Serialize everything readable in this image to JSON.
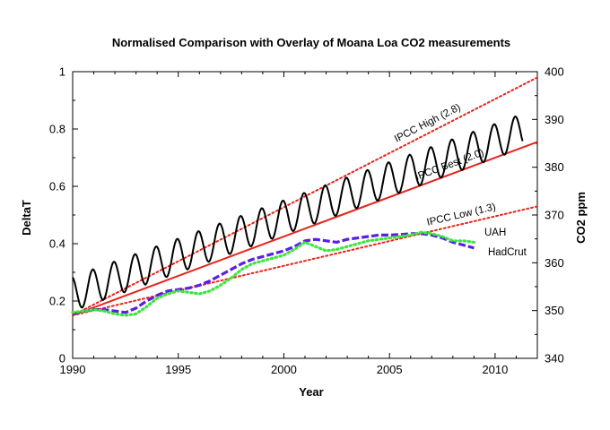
{
  "chart_data": {
    "type": "line",
    "title": "Normalised Comparison with Overlay of Moana Loa CO2 measurements",
    "xlabel": "Year",
    "ylabel": "DeltaT",
    "y2label": "CO2 ppm",
    "xlim": [
      1990,
      2012
    ],
    "ylim": [
      0,
      1
    ],
    "y2lim": [
      340,
      400
    ],
    "xticks": [
      1990,
      1995,
      2000,
      2005,
      2010
    ],
    "yticks": [
      0,
      0.2,
      0.4,
      0.6,
      0.8,
      1
    ],
    "y2ticks": [
      340,
      350,
      360,
      370,
      380,
      390,
      400
    ],
    "grid": false,
    "projections": [
      {
        "name": "IPCC High (2.8)",
        "color": "#e8241b",
        "style": "dotted",
        "start": [
          1990,
          0.15
        ],
        "end": [
          2012,
          0.98
        ]
      },
      {
        "name": "IPCC Best (2.0)",
        "color": "#e8241b",
        "style": "solid",
        "start": [
          1990,
          0.15
        ],
        "end": [
          2012,
          0.755
        ]
      },
      {
        "name": "IPCC Low (1.3)",
        "color": "#e8241b",
        "style": "dotted",
        "start": [
          1990,
          0.15
        ],
        "end": [
          2012,
          0.53
        ]
      }
    ],
    "series": [
      {
        "name": "UAH",
        "color": "#5a1ee6",
        "style": "dashed",
        "x": [
          1990,
          1990.5,
          1991,
          1991.5,
          1992,
          1992.5,
          1993,
          1993.5,
          1994,
          1994.5,
          1995,
          1995.5,
          1996,
          1996.5,
          1997,
          1997.5,
          1998,
          1998.5,
          1999,
          1999.5,
          2000,
          2000.5,
          2001,
          2001.5,
          2002,
          2002.5,
          2003,
          2003.5,
          2004,
          2004.5,
          2005,
          2005.5,
          2006,
          2006.5,
          2007,
          2007.5,
          2008,
          2008.5,
          2009
        ],
        "y": [
          0.155,
          0.165,
          0.17,
          0.17,
          0.165,
          0.16,
          0.175,
          0.2,
          0.22,
          0.235,
          0.24,
          0.245,
          0.255,
          0.27,
          0.29,
          0.31,
          0.33,
          0.345,
          0.355,
          0.365,
          0.375,
          0.39,
          0.41,
          0.415,
          0.41,
          0.405,
          0.415,
          0.42,
          0.425,
          0.43,
          0.43,
          0.432,
          0.435,
          0.435,
          0.43,
          0.42,
          0.405,
          0.395,
          0.385
        ]
      },
      {
        "name": "HadCrut",
        "color": "#3de63d",
        "style": "dotted",
        "x": [
          1990,
          1990.5,
          1991,
          1991.5,
          1992,
          1992.5,
          1993,
          1993.5,
          1994,
          1994.5,
          1995,
          1995.5,
          1996,
          1996.5,
          1997,
          1997.5,
          1998,
          1998.5,
          1999,
          1999.5,
          2000,
          2000.5,
          2001,
          2001.5,
          2002,
          2002.5,
          2003,
          2003.5,
          2004,
          2004.5,
          2005,
          2005.5,
          2006,
          2006.5,
          2007,
          2007.5,
          2008,
          2008.5,
          2009
        ],
        "y": [
          0.16,
          0.165,
          0.17,
          0.165,
          0.155,
          0.15,
          0.155,
          0.18,
          0.21,
          0.225,
          0.235,
          0.23,
          0.225,
          0.235,
          0.255,
          0.28,
          0.31,
          0.33,
          0.34,
          0.35,
          0.36,
          0.38,
          0.405,
          0.39,
          0.375,
          0.38,
          0.39,
          0.4,
          0.41,
          0.415,
          0.42,
          0.425,
          0.43,
          0.44,
          0.435,
          0.425,
          0.41,
          0.41,
          0.405
        ]
      },
      {
        "name": "Moana Loa CO2",
        "axis": "right",
        "color": "#000000",
        "style": "solid",
        "base_start": 353.5,
        "base_rate": 1.6,
        "seasonal_amplitude": 3.6,
        "x_range": [
          1990,
          2011.3
        ]
      }
    ]
  }
}
